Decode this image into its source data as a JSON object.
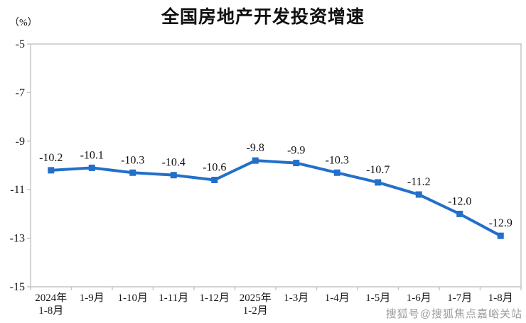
{
  "header": {
    "title": "全国房地产开发投资增速",
    "unit": "（%）"
  },
  "footer": {
    "watermark": "搜狐号@搜狐焦点嘉峪关站"
  },
  "chart_data": {
    "type": "line",
    "title": "全国房地产开发投资增速",
    "ylabel": "（%）",
    "categories": [
      "2024年\n1-8月",
      "1-9月",
      "1-10月",
      "1-11月",
      "1-12月",
      "2025年\n1-2月",
      "1-3月",
      "1-4月",
      "1-5月",
      "1-6月",
      "1-7月",
      "1-8月"
    ],
    "values": [
      -10.2,
      -10.1,
      -10.3,
      -10.4,
      -10.6,
      -9.8,
      -9.9,
      -10.3,
      -10.7,
      -11.2,
      -12.0,
      -12.9
    ],
    "ylim": [
      -15,
      -5
    ],
    "yticks": [
      -5,
      -7,
      -9,
      -11,
      -13,
      -15
    ],
    "grid": false,
    "legend": "none",
    "marker": "square",
    "line_color": "#2270C9",
    "axis_color": "#C6C6C6",
    "label_color": "#1a1a1a"
  }
}
